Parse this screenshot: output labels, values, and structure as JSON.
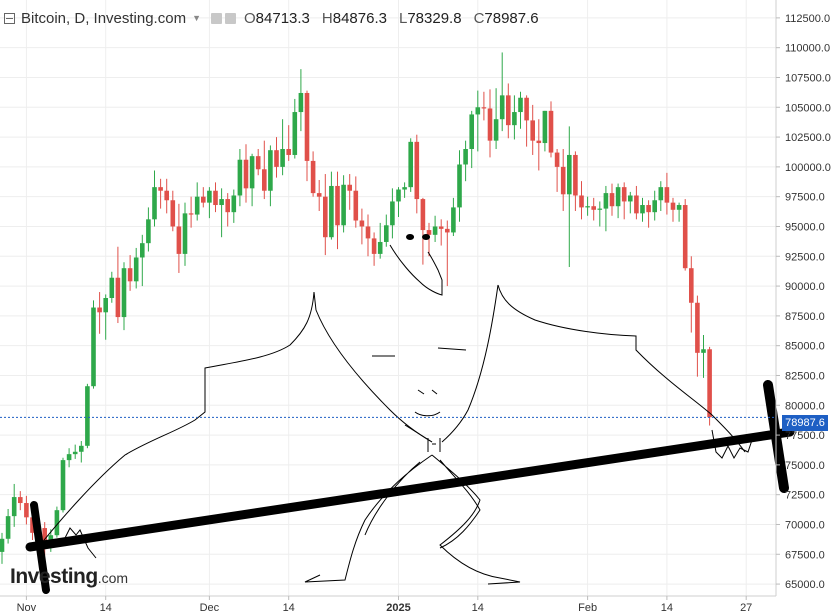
{
  "header": {
    "symbol": "Bitcoin, D, Investing.com",
    "open_key": "O",
    "open_val": "84713.3",
    "high_key": "H",
    "high_val": "84876.3",
    "low_key": "L",
    "low_val": "78329.8",
    "close_key": "C",
    "close_val": "78987.6"
  },
  "logo": {
    "main": "Investing",
    "domain": ".com"
  },
  "colors": {
    "up": "#2ea84a",
    "down": "#e0504a",
    "grid": "#eeeeee",
    "last_price": "#1e5fc4"
  },
  "chart_data": {
    "type": "candlestick",
    "ylim": [
      64000,
      114000
    ],
    "y_ticks": [
      "65000.0",
      "67500.0",
      "70000.0",
      "72500.0",
      "75000.0",
      "77500.0",
      "80000.0",
      "82500.0",
      "85000.0",
      "87500.0",
      "90000.0",
      "92500.0",
      "95000.0",
      "97500.0",
      "100000.0",
      "102500.0",
      "105000.0",
      "107500.0",
      "110000.0",
      "112500.0"
    ],
    "x_ticks": [
      {
        "label": "Nov",
        "index": 4
      },
      {
        "label": "14",
        "index": 17
      },
      {
        "label": "Dec",
        "index": 34
      },
      {
        "label": "14",
        "index": 47
      },
      {
        "label": "2025",
        "index": 65
      },
      {
        "label": "14",
        "index": 78
      },
      {
        "label": "Feb",
        "index": 96
      },
      {
        "label": "14",
        "index": 109
      },
      {
        "label": "27",
        "index": 122
      }
    ],
    "last_price": "78987.6",
    "candles": [
      [
        67700,
        69300,
        66700,
        68800
      ],
      [
        68800,
        71300,
        68400,
        70700
      ],
      [
        70700,
        73400,
        69800,
        72300
      ],
      [
        72300,
        72800,
        71200,
        71800
      ],
      [
        71800,
        72400,
        70000,
        70600
      ],
      [
        70600,
        71500,
        68700,
        69300
      ],
      [
        69300,
        70400,
        68500,
        69700
      ],
      [
        69700,
        70200,
        67400,
        68300
      ],
      [
        68300,
        69600,
        67700,
        69100
      ],
      [
        69100,
        71500,
        68900,
        71200
      ],
      [
        71200,
        75600,
        71000,
        75400
      ],
      [
        75400,
        76400,
        74800,
        75900
      ],
      [
        75900,
        76700,
        75500,
        76100
      ],
      [
        76100,
        77000,
        75200,
        76600
      ],
      [
        76600,
        81800,
        76400,
        81600
      ],
      [
        81600,
        88800,
        81400,
        88200
      ],
      [
        88200,
        89500,
        86000,
        87800
      ],
      [
        87800,
        89300,
        85500,
        89000
      ],
      [
        89000,
        91200,
        88600,
        90700
      ],
      [
        90700,
        93300,
        86900,
        87400
      ],
      [
        87400,
        92000,
        86300,
        91500
      ],
      [
        91500,
        92600,
        89600,
        90400
      ],
      [
        90400,
        93200,
        89800,
        92400
      ],
      [
        92400,
        94300,
        90000,
        93600
      ],
      [
        93600,
        96600,
        92900,
        95600
      ],
      [
        95600,
        99700,
        95000,
        98300
      ],
      [
        98300,
        99000,
        96500,
        98000
      ],
      [
        98000,
        99000,
        96100,
        97200
      ],
      [
        97200,
        98000,
        94600,
        95000
      ],
      [
        95000,
        96900,
        91100,
        92700
      ],
      [
        92700,
        97000,
        91700,
        96100
      ],
      [
        96100,
        97500,
        94900,
        96000
      ],
      [
        96000,
        98700,
        95500,
        97500
      ],
      [
        97500,
        98300,
        96600,
        97000
      ],
      [
        97000,
        98300,
        95700,
        98000
      ],
      [
        98000,
        98700,
        96200,
        96800
      ],
      [
        96800,
        98200,
        94100,
        97300
      ],
      [
        97300,
        97800,
        95000,
        96200
      ],
      [
        96200,
        98100,
        95300,
        97600
      ],
      [
        97600,
        101500,
        96700,
        100600
      ],
      [
        100600,
        101900,
        97000,
        98200
      ],
      [
        98200,
        101100,
        96700,
        100900
      ],
      [
        100900,
        101500,
        99300,
        99800
      ],
      [
        99800,
        102200,
        97300,
        98000
      ],
      [
        98000,
        101800,
        96700,
        101400
      ],
      [
        101400,
        102500,
        99100,
        100000
      ],
      [
        100000,
        104000,
        99300,
        101500
      ],
      [
        101500,
        103500,
        100500,
        101000
      ],
      [
        101000,
        105700,
        100700,
        104600
      ],
      [
        104600,
        108200,
        103000,
        106200
      ],
      [
        106200,
        106400,
        98800,
        100500
      ],
      [
        100500,
        101300,
        97500,
        97800
      ],
      [
        97800,
        98900,
        96300,
        97500
      ],
      [
        97500,
        99400,
        92600,
        94100
      ],
      [
        94100,
        99600,
        93900,
        98400
      ],
      [
        98400,
        99600,
        93100,
        95100
      ],
      [
        95100,
        99300,
        94500,
        98500
      ],
      [
        98500,
        99400,
        96400,
        98000
      ],
      [
        98000,
        99200,
        94900,
        95500
      ],
      [
        95500,
        96500,
        93500,
        95000
      ],
      [
        95000,
        96000,
        92500,
        94000
      ],
      [
        94000,
        94500,
        91700,
        92700
      ],
      [
        92700,
        95300,
        92300,
        93700
      ],
      [
        93700,
        96000,
        93300,
        95100
      ],
      [
        95100,
        98200,
        94000,
        97100
      ],
      [
        97100,
        98300,
        95800,
        98100
      ],
      [
        98100,
        98700,
        97400,
        98300
      ],
      [
        98300,
        102400,
        97900,
        102100
      ],
      [
        102100,
        102700,
        96100,
        97300
      ],
      [
        97300,
        97400,
        91800,
        94700
      ],
      [
        94700,
        95300,
        92500,
        94300
      ],
      [
        94300,
        95900,
        93700,
        95000
      ],
      [
        95000,
        95600,
        93400,
        94800
      ],
      [
        94800,
        95500,
        90000,
        94500
      ],
      [
        94500,
        97400,
        94200,
        96600
      ],
      [
        96600,
        101400,
        95400,
        100200
      ],
      [
        100200,
        102200,
        98800,
        101500
      ],
      [
        101500,
        104700,
        99900,
        104400
      ],
      [
        104400,
        106400,
        101300,
        105000
      ],
      [
        105000,
        106300,
        103900,
        104900
      ],
      [
        104900,
        106500,
        100800,
        102200
      ],
      [
        102200,
        106600,
        101500,
        104000
      ],
      [
        104000,
        109600,
        103000,
        106000
      ],
      [
        106000,
        107000,
        102400,
        103500
      ],
      [
        103500,
        106000,
        102300,
        104600
      ],
      [
        104600,
        106300,
        103200,
        105800
      ],
      [
        105800,
        106000,
        101700,
        103900
      ],
      [
        103900,
        105200,
        101000,
        102200
      ],
      [
        102200,
        104000,
        99700,
        102000
      ],
      [
        102000,
        104700,
        101300,
        104700
      ],
      [
        104700,
        105500,
        100800,
        101200
      ],
      [
        101200,
        101500,
        97900,
        100000
      ],
      [
        100000,
        101500,
        96300,
        97700
      ],
      [
        97700,
        103400,
        91600,
        101000
      ],
      [
        101000,
        101300,
        96300,
        97600
      ],
      [
        97600,
        98800,
        95600,
        96600
      ],
      [
        96600,
        97500,
        95900,
        96700
      ],
      [
        96700,
        97400,
        95500,
        96400
      ],
      [
        96400,
        97100,
        95000,
        96500
      ],
      [
        96500,
        98400,
        94600,
        97800
      ],
      [
        97800,
        98600,
        95900,
        96700
      ],
      [
        96700,
        98600,
        95700,
        98300
      ],
      [
        98300,
        98700,
        95600,
        97100
      ],
      [
        97100,
        97900,
        96100,
        97600
      ],
      [
        97600,
        98400,
        95600,
        96100
      ],
      [
        96100,
        97400,
        95400,
        96800
      ],
      [
        96800,
        97200,
        94900,
        96200
      ],
      [
        96200,
        98000,
        95500,
        97200
      ],
      [
        97200,
        98800,
        96300,
        98300
      ],
      [
        98300,
        99500,
        96000,
        97000
      ],
      [
        97000,
        97400,
        95400,
        96400
      ],
      [
        96400,
        97000,
        95400,
        96800
      ],
      [
        96800,
        97300,
        91300,
        91500
      ],
      [
        91500,
        92500,
        86100,
        88600
      ],
      [
        88600,
        89200,
        82400,
        84400
      ],
      [
        84400,
        85900,
        82300,
        84700
      ],
      [
        84700,
        84900,
        78300,
        79000
      ]
    ]
  }
}
